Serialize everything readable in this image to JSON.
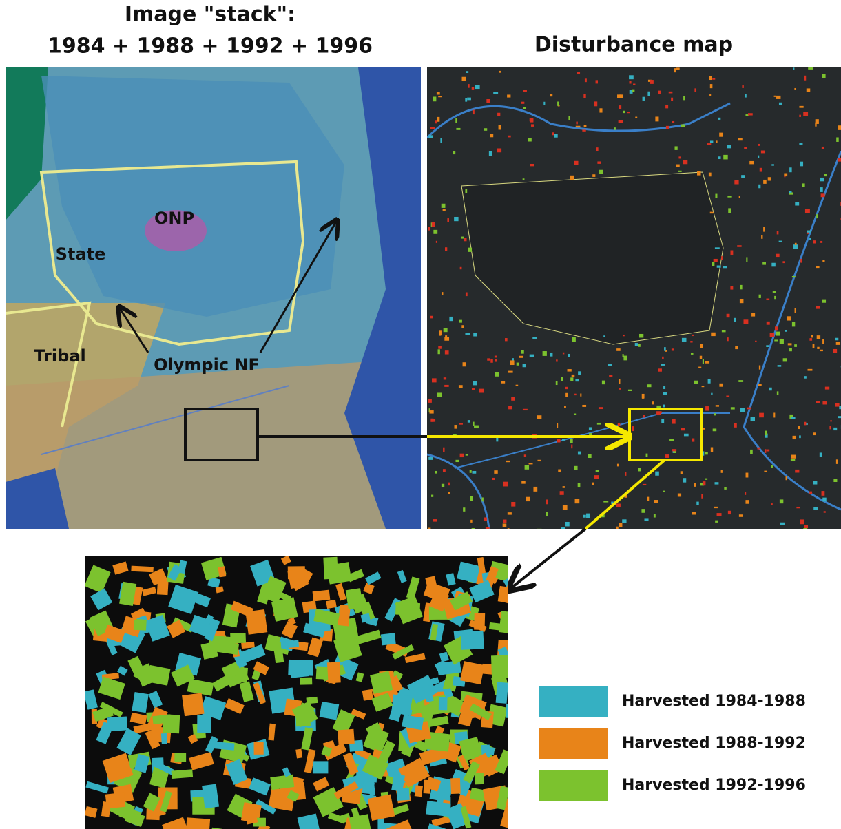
{
  "left_panel": {
    "title_lines": [
      "Image \"stack\":",
      "1984 + 1988 + 1992 + 1996"
    ],
    "labels": [
      "ONP",
      "State",
      "Tribal",
      "Olympic NF"
    ]
  },
  "right_panel": {
    "title": "Disturbance map"
  },
  "legend": [
    {
      "label": "Harvested 1984-1988",
      "color": "#35b0c2"
    },
    {
      "label": "Harvested 1988-1992",
      "color": "#e88419"
    },
    {
      "label": "Harvested 1992-1996",
      "color": "#7cc22e"
    }
  ]
}
